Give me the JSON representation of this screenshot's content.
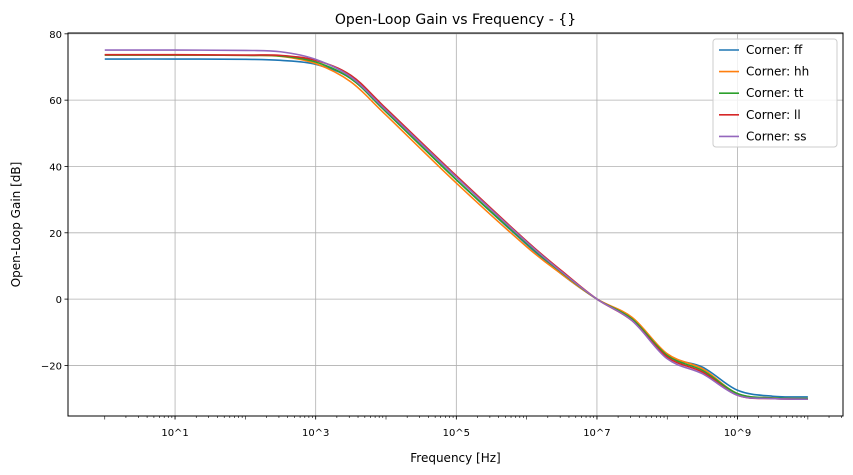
{
  "chart_data": {
    "type": "line",
    "title": "Open-Loop Gain vs Frequency - {}",
    "xlabel": "Frequency [Hz]",
    "ylabel": "Open-Loop Gain [dB]",
    "xscale": "log",
    "xlim": [
      0.3,
      31600000000
    ],
    "ylim": [
      -35.25,
      80.25
    ],
    "grid": true,
    "legend_placement": "top-right",
    "x_ticks": [
      {
        "value": 10,
        "label": "10^1"
      },
      {
        "value": 1000,
        "label": "10^3"
      },
      {
        "value": 100000,
        "label": "10^5"
      },
      {
        "value": 10000000,
        "label": "10^7"
      },
      {
        "value": 1000000000,
        "label": "10^9"
      }
    ],
    "y_ticks": [
      -20,
      0,
      20,
      40,
      60,
      80
    ],
    "y_tick_labels": [
      "−20",
      "0",
      "20",
      "40",
      "60",
      "80"
    ],
    "x": [
      1,
      10,
      100,
      316,
      1000,
      3162,
      10000,
      100000,
      1000000,
      3162000,
      10000000,
      31620000,
      100000000,
      316200000,
      1000000000,
      3162000000,
      10000000000
    ],
    "series": [
      {
        "name": "Corner: ff",
        "color": "#1f77b4",
        "values": [
          72.4,
          72.4,
          72.3,
          72.0,
          70.8,
          66.5,
          56.5,
          36.0,
          16.5,
          7.5,
          0,
          -6,
          -17,
          -20.5,
          -27.5,
          -29.3,
          -29.5
        ]
      },
      {
        "name": "Corner: hh",
        "color": "#ff7f0e",
        "values": [
          73.6,
          73.6,
          73.5,
          73.2,
          71.0,
          65.5,
          55.5,
          35.0,
          15.8,
          7.5,
          0,
          -5.5,
          -16.5,
          -21,
          -28.5,
          -29.8,
          -30
        ]
      },
      {
        "name": "Corner: tt",
        "color": "#2ca02c",
        "values": [
          73.6,
          73.6,
          73.5,
          73.3,
          71.5,
          66.5,
          56.5,
          36.0,
          16.8,
          8.0,
          0,
          -6,
          -17,
          -21.5,
          -28.5,
          -29.8,
          -30
        ]
      },
      {
        "name": "Corner: ll",
        "color": "#d62728",
        "values": [
          73.7,
          73.7,
          73.6,
          73.5,
          72.0,
          67.5,
          57.5,
          37.2,
          17.5,
          8.5,
          0,
          -6.5,
          -17.5,
          -22,
          -29,
          -30,
          -30.2
        ]
      },
      {
        "name": "Corner: ss",
        "color": "#9467bd",
        "values": [
          75.1,
          75.1,
          75.0,
          74.6,
          72.3,
          67.0,
          57.0,
          36.8,
          17.2,
          8.2,
          0,
          -6.5,
          -18,
          -22.5,
          -29,
          -30,
          -30.2
        ]
      }
    ]
  }
}
